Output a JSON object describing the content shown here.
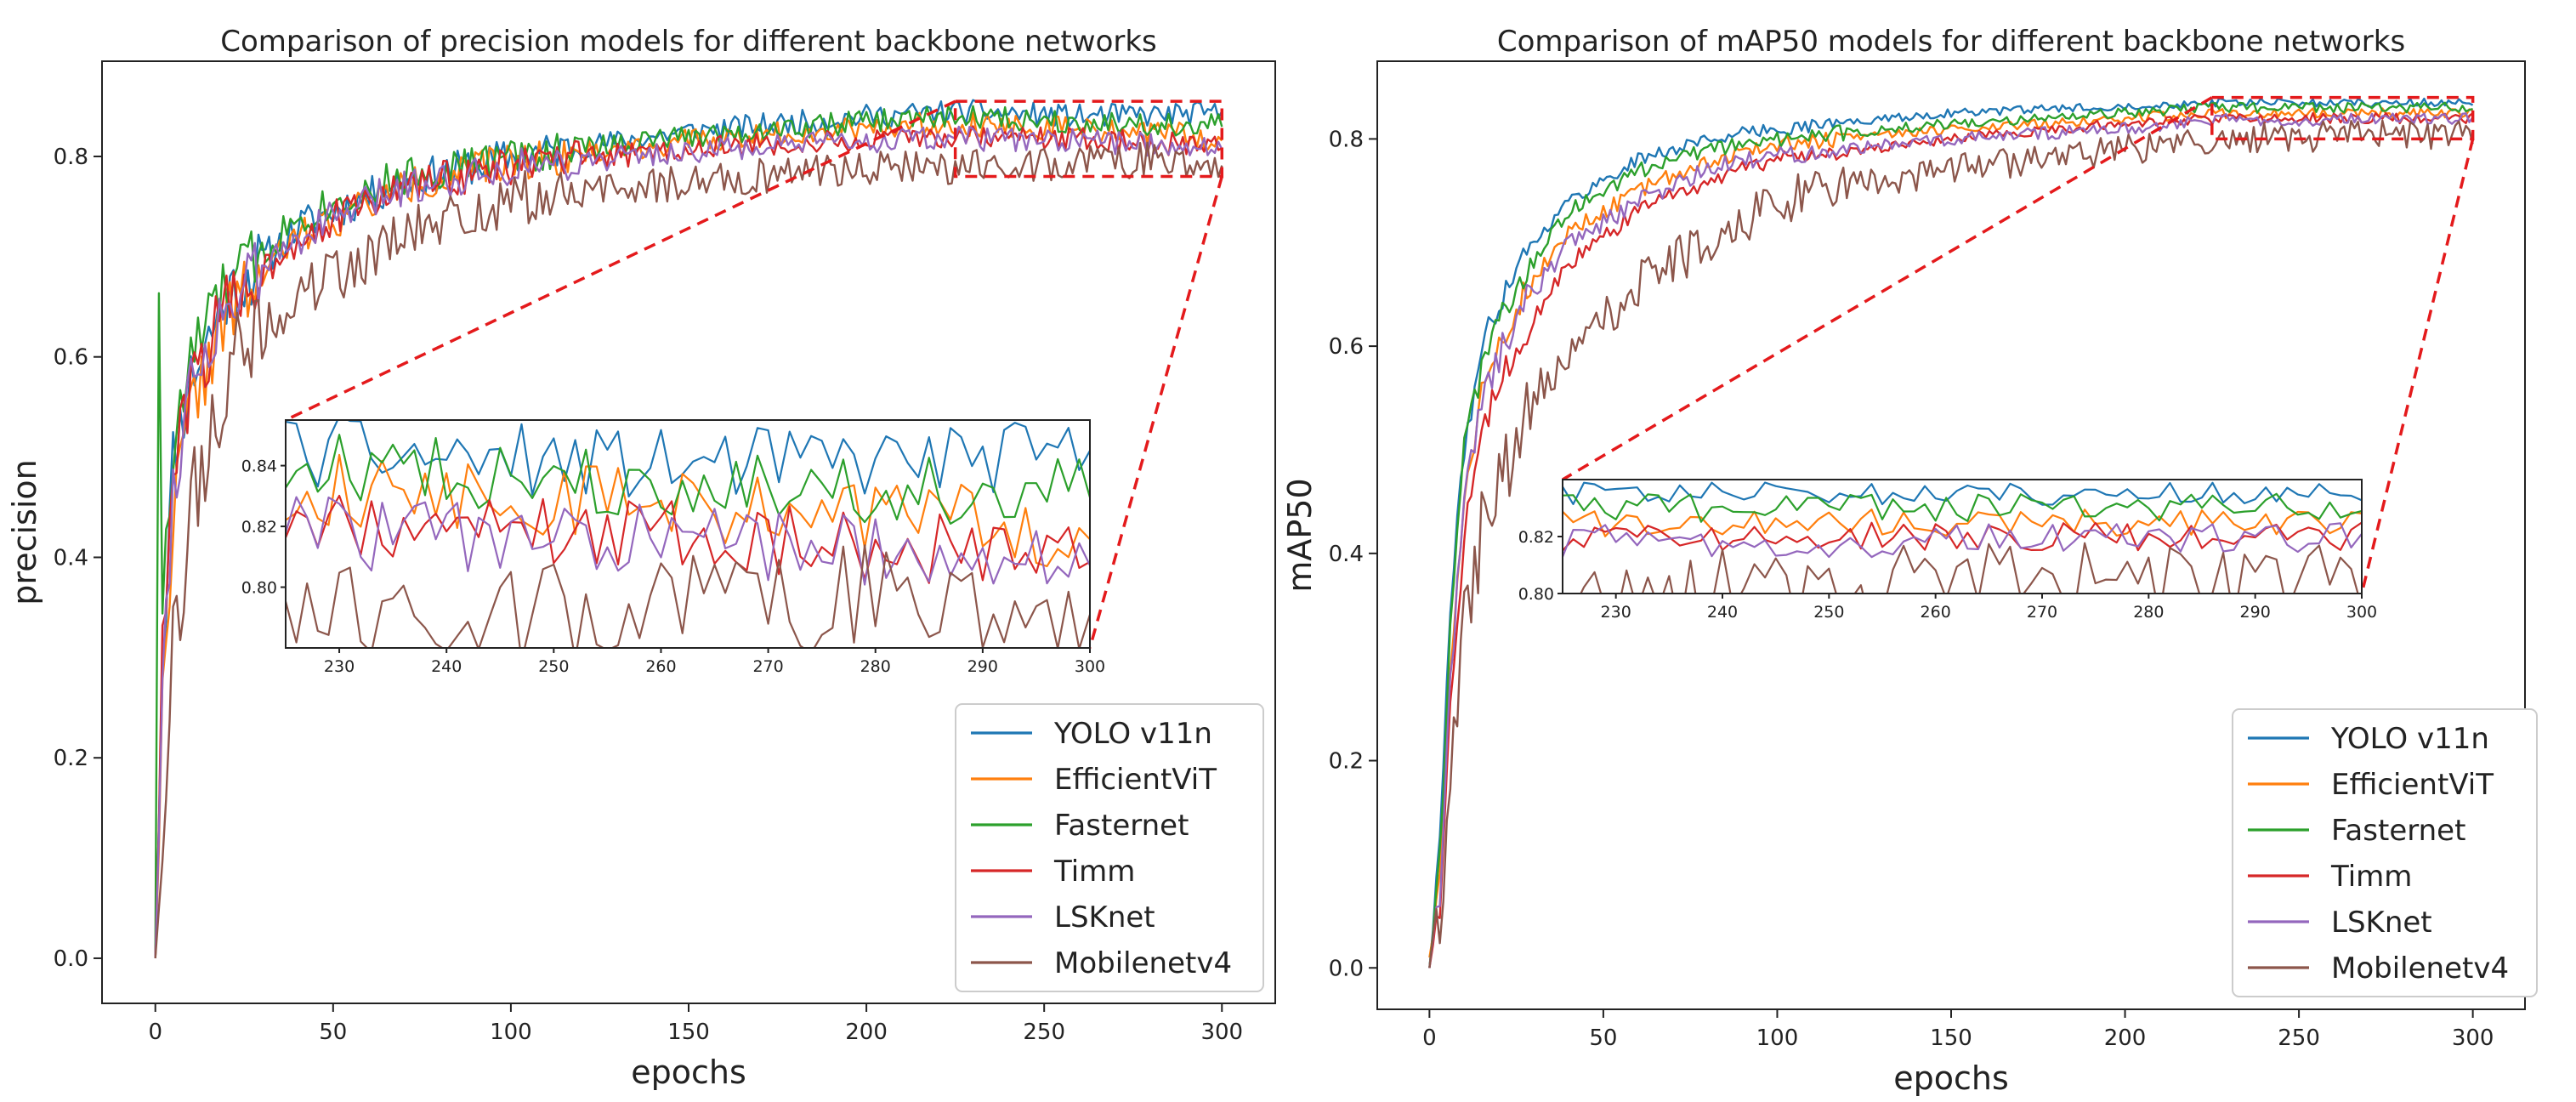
{
  "chart_data": [
    {
      "type": "line",
      "title": "Comparison of precision models for different backbone networks",
      "xlabel": "epochs",
      "ylabel": "precision",
      "xlim": [
        -15,
        315
      ],
      "ylim": [
        -0.045,
        0.895
      ],
      "xticks": [
        0,
        50,
        100,
        150,
        200,
        250,
        300
      ],
      "yticks": [
        0.0,
        0.2,
        0.4,
        0.6,
        0.8
      ],
      "ytick_labels": [
        "0.0",
        "0.2",
        "0.4",
        "0.6",
        "0.8"
      ],
      "legend_position": "lower-right",
      "series": [
        {
          "name": "YOLO v11n",
          "color": "#1f77b4",
          "anchors": [
            [
              0,
              0.0
            ],
            [
              2,
              0.3
            ],
            [
              5,
              0.5
            ],
            [
              10,
              0.58
            ],
            [
              20,
              0.66
            ],
            [
              40,
              0.73
            ],
            [
              70,
              0.775
            ],
            [
              100,
              0.8
            ],
            [
              150,
              0.825
            ],
            [
              200,
              0.84
            ],
            [
              225,
              0.845
            ],
            [
              260,
              0.84
            ],
            [
              300,
              0.843
            ]
          ],
          "noise": 0.012,
          "seed": 11
        },
        {
          "name": "EfficientViT",
          "color": "#ff7f0e",
          "anchors": [
            [
              0,
              0.0
            ],
            [
              2,
              0.25
            ],
            [
              5,
              0.45
            ],
            [
              10,
              0.55
            ],
            [
              20,
              0.64
            ],
            [
              40,
              0.72
            ],
            [
              70,
              0.77
            ],
            [
              100,
              0.795
            ],
            [
              150,
              0.815
            ],
            [
              200,
              0.83
            ],
            [
              225,
              0.833
            ],
            [
              260,
              0.827
            ],
            [
              290,
              0.822
            ],
            [
              300,
              0.815
            ]
          ],
          "noise": 0.012,
          "seed": 22
        },
        {
          "name": "Fasternet",
          "color": "#2ca02c",
          "anchors": [
            [
              0,
              0.0
            ],
            [
              1,
              0.68
            ],
            [
              2,
              0.35
            ],
            [
              5,
              0.5
            ],
            [
              10,
              0.6
            ],
            [
              20,
              0.67
            ],
            [
              40,
              0.74
            ],
            [
              70,
              0.78
            ],
            [
              100,
              0.8
            ],
            [
              150,
              0.82
            ],
            [
              200,
              0.835
            ],
            [
              225,
              0.84
            ],
            [
              260,
              0.835
            ],
            [
              300,
              0.83
            ]
          ],
          "noise": 0.012,
          "seed": 33
        },
        {
          "name": "Timm",
          "color": "#d62728",
          "anchors": [
            [
              0,
              0.0
            ],
            [
              2,
              0.3
            ],
            [
              5,
              0.48
            ],
            [
              10,
              0.57
            ],
            [
              20,
              0.65
            ],
            [
              40,
              0.72
            ],
            [
              70,
              0.77
            ],
            [
              100,
              0.79
            ],
            [
              150,
              0.808
            ],
            [
              200,
              0.815
            ],
            [
              225,
              0.82
            ],
            [
              260,
              0.818
            ],
            [
              300,
              0.81
            ]
          ],
          "noise": 0.012,
          "seed": 44
        },
        {
          "name": "LSKnet",
          "color": "#9467bd",
          "anchors": [
            [
              0,
              0.0
            ],
            [
              2,
              0.28
            ],
            [
              5,
              0.47
            ],
            [
              10,
              0.58
            ],
            [
              20,
              0.65
            ],
            [
              40,
              0.72
            ],
            [
              70,
              0.77
            ],
            [
              100,
              0.79
            ],
            [
              150,
              0.805
            ],
            [
              200,
              0.815
            ],
            [
              225,
              0.818
            ],
            [
              260,
              0.815
            ],
            [
              300,
              0.81
            ]
          ],
          "noise": 0.012,
          "seed": 55
        },
        {
          "name": "Mobilenetv4",
          "color": "#8c564b",
          "anchors": [
            [
              0,
              0.0
            ],
            [
              2,
              0.15
            ],
            [
              5,
              0.3
            ],
            [
              10,
              0.45
            ],
            [
              20,
              0.58
            ],
            [
              40,
              0.66
            ],
            [
              70,
              0.72
            ],
            [
              100,
              0.755
            ],
            [
              150,
              0.775
            ],
            [
              200,
              0.79
            ],
            [
              225,
              0.79
            ],
            [
              260,
              0.795
            ],
            [
              300,
              0.797
            ]
          ],
          "noise": 0.018,
          "seed": 66
        }
      ],
      "zoom": {
        "xlim": [
          225,
          300
        ],
        "ylim": [
          0.78,
          0.855
        ],
        "xticks": [
          230,
          240,
          250,
          260,
          270,
          280,
          290,
          300
        ],
        "yticks": [
          0.8,
          0.82,
          0.84
        ],
        "ytick_labels": [
          "0.80",
          "0.82",
          "0.84"
        ]
      }
    },
    {
      "type": "line",
      "title": "Comparison of mAP50 models for different backbone networks",
      "xlabel": "epochs",
      "ylabel": "mAP50",
      "xlim": [
        -15,
        315
      ],
      "ylim": [
        -0.04,
        0.875
      ],
      "xticks": [
        0,
        50,
        100,
        150,
        200,
        250,
        300
      ],
      "yticks": [
        0.0,
        0.2,
        0.4,
        0.6,
        0.8
      ],
      "ytick_labels": [
        "0.0",
        "0.2",
        "0.4",
        "0.6",
        "0.8"
      ],
      "legend_position": "lower-right",
      "series": [
        {
          "name": "YOLO v11n",
          "color": "#1f77b4",
          "anchors": [
            [
              0,
              0.0
            ],
            [
              3,
              0.12
            ],
            [
              6,
              0.35
            ],
            [
              10,
              0.5
            ],
            [
              15,
              0.6
            ],
            [
              25,
              0.68
            ],
            [
              40,
              0.74
            ],
            [
              60,
              0.78
            ],
            [
              80,
              0.8
            ],
            [
              100,
              0.81
            ],
            [
              150,
              0.825
            ],
            [
              200,
              0.832
            ],
            [
              225,
              0.835
            ],
            [
              300,
              0.835
            ]
          ],
          "noise": 0.004,
          "seed": 111
        },
        {
          "name": "EfficientViT",
          "color": "#ff7f0e",
          "anchors": [
            [
              0,
              0.01
            ],
            [
              3,
              0.08
            ],
            [
              6,
              0.3
            ],
            [
              10,
              0.45
            ],
            [
              15,
              0.55
            ],
            [
              25,
              0.64
            ],
            [
              40,
              0.71
            ],
            [
              60,
              0.75
            ],
            [
              80,
              0.78
            ],
            [
              100,
              0.795
            ],
            [
              150,
              0.81
            ],
            [
              200,
              0.82
            ],
            [
              225,
              0.825
            ],
            [
              300,
              0.825
            ]
          ],
          "noise": 0.005,
          "seed": 222
        },
        {
          "name": "Fasternet",
          "color": "#2ca02c",
          "anchors": [
            [
              0,
              0.0
            ],
            [
              3,
              0.1
            ],
            [
              6,
              0.32
            ],
            [
              10,
              0.5
            ],
            [
              15,
              0.58
            ],
            [
              25,
              0.66
            ],
            [
              40,
              0.73
            ],
            [
              60,
              0.77
            ],
            [
              80,
              0.79
            ],
            [
              100,
              0.8
            ],
            [
              150,
              0.815
            ],
            [
              200,
              0.825
            ],
            [
              225,
              0.83
            ],
            [
              300,
              0.83
            ]
          ],
          "noise": 0.005,
          "seed": 333
        },
        {
          "name": "Timm",
          "color": "#d62728",
          "anchors": [
            [
              0,
              0.0
            ],
            [
              3,
              0.06
            ],
            [
              6,
              0.25
            ],
            [
              10,
              0.42
            ],
            [
              15,
              0.52
            ],
            [
              25,
              0.6
            ],
            [
              40,
              0.68
            ],
            [
              60,
              0.73
            ],
            [
              80,
              0.76
            ],
            [
              100,
              0.78
            ],
            [
              150,
              0.8
            ],
            [
              200,
              0.815
            ],
            [
              225,
              0.82
            ],
            [
              300,
              0.82
            ]
          ],
          "noise": 0.005,
          "seed": 444
        },
        {
          "name": "LSKnet",
          "color": "#9467bd",
          "anchors": [
            [
              0,
              0.0
            ],
            [
              3,
              0.07
            ],
            [
              6,
              0.28
            ],
            [
              10,
              0.45
            ],
            [
              15,
              0.55
            ],
            [
              25,
              0.63
            ],
            [
              40,
              0.7
            ],
            [
              60,
              0.74
            ],
            [
              80,
              0.77
            ],
            [
              100,
              0.785
            ],
            [
              150,
              0.8
            ],
            [
              200,
              0.81
            ],
            [
              225,
              0.818
            ],
            [
              300,
              0.82
            ]
          ],
          "noise": 0.006,
          "seed": 555
        },
        {
          "name": "Mobilenetv4",
          "color": "#8c564b",
          "anchors": [
            [
              0,
              0.0
            ],
            [
              3,
              0.04
            ],
            [
              6,
              0.18
            ],
            [
              10,
              0.32
            ],
            [
              15,
              0.42
            ],
            [
              25,
              0.52
            ],
            [
              40,
              0.6
            ],
            [
              60,
              0.66
            ],
            [
              80,
              0.7
            ],
            [
              100,
              0.74
            ],
            [
              150,
              0.77
            ],
            [
              200,
              0.79
            ],
            [
              225,
              0.8
            ],
            [
              300,
              0.805
            ]
          ],
          "noise": 0.015,
          "seed": 666
        }
      ],
      "zoom": {
        "xlim": [
          225,
          300
        ],
        "ylim": [
          0.8,
          0.84
        ],
        "xticks": [
          230,
          240,
          250,
          260,
          270,
          280,
          290,
          300
        ],
        "yticks": [
          0.8,
          0.82
        ],
        "ytick_labels": [
          "0.80",
          "0.82"
        ]
      }
    }
  ]
}
